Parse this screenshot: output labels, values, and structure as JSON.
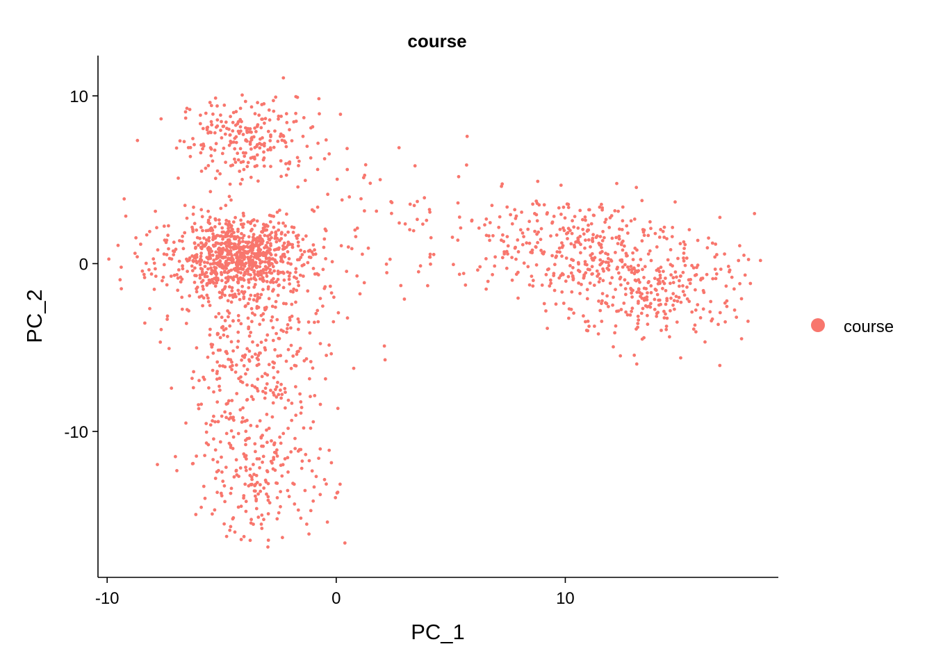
{
  "chart_data": {
    "type": "scatter",
    "title": "course",
    "xlabel": "PC_1",
    "ylabel": "PC_2",
    "xlim": [
      -10.4,
      19.3
    ],
    "ylim": [
      -18.7,
      12.4
    ],
    "x_ticks": [
      -10,
      0,
      10
    ],
    "y_ticks": [
      -10,
      0,
      10
    ],
    "x_tick_labels": [
      "-10",
      "0",
      "10"
    ],
    "y_tick_labels": [
      "-10",
      "0",
      "10"
    ],
    "grid": false,
    "legend_position": "right",
    "series": [
      {
        "name": "course",
        "color": "#F8766D",
        "clusters": [
          {
            "label": "upper-left",
            "center": [
              -3.8,
              7.5
            ],
            "spread": [
              1.5,
              1.2
            ],
            "n": 230
          },
          {
            "label": "left-core",
            "center": [
              -4.3,
              0.5
            ],
            "spread": [
              1.3,
              1.0
            ],
            "n": 600
          },
          {
            "label": "left-ring",
            "center": [
              -4.2,
              0.0
            ],
            "spread": [
              2.4,
              1.8
            ],
            "n": 280
          },
          {
            "label": "left-lower-stem",
            "center": [
              -3.6,
              -6.0
            ],
            "spread": [
              1.6,
              3.2
            ],
            "n": 330
          },
          {
            "label": "left-bottom",
            "center": [
              -3.2,
              -12.5
            ],
            "spread": [
              1.5,
              2.0
            ],
            "n": 190
          },
          {
            "label": "bridge",
            "center": [
              2.5,
              2.0
            ],
            "spread": [
              2.2,
              2.3
            ],
            "n": 60
          },
          {
            "label": "right-upper",
            "center": [
              10.0,
              1.3
            ],
            "spread": [
              2.5,
              1.4
            ],
            "n": 300
          },
          {
            "label": "right-lower",
            "center": [
              13.8,
              -1.6
            ],
            "spread": [
              2.0,
              1.6
            ],
            "n": 310
          }
        ]
      }
    ]
  }
}
